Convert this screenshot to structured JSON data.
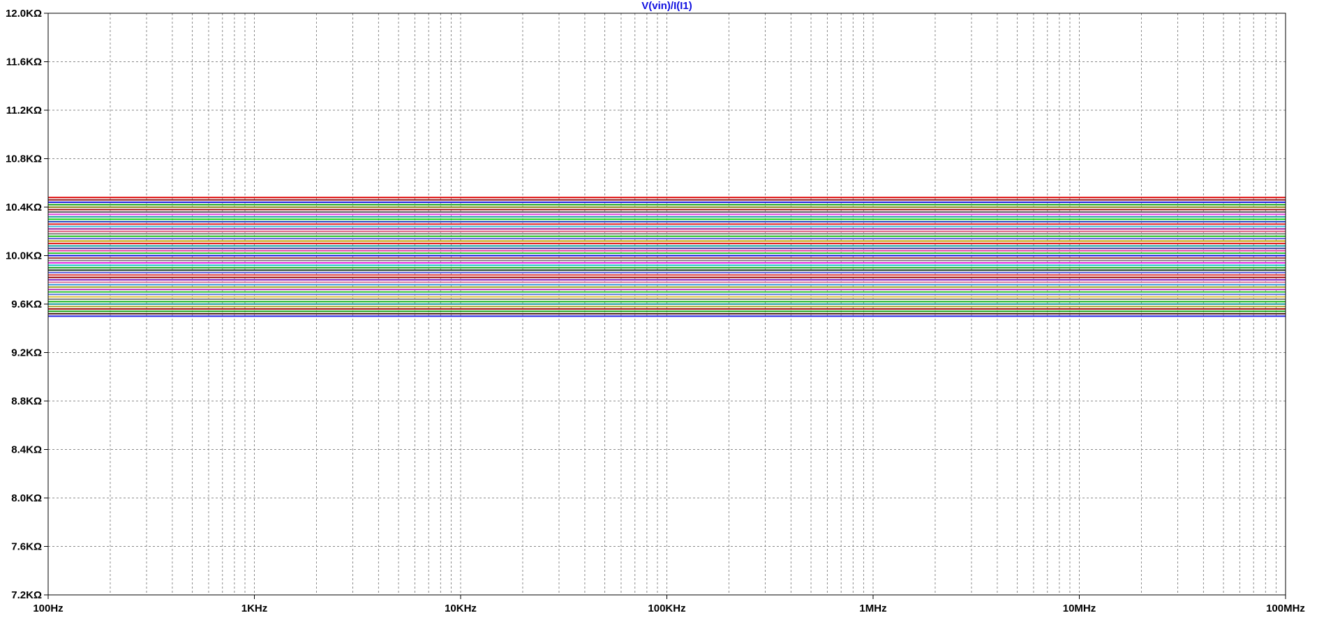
{
  "chart_data": {
    "type": "line",
    "title": "V(vin)/I(I1)",
    "title_color": "#1010e0",
    "xlabel": "",
    "ylabel": "",
    "x_scale": "log",
    "xlim": [
      100,
      100000000
    ],
    "ylim": [
      7200,
      12000
    ],
    "grid": true,
    "x_ticks": [
      {
        "value": 100,
        "label": "100Hz"
      },
      {
        "value": 1000,
        "label": "1KHz"
      },
      {
        "value": 10000,
        "label": "10KHz"
      },
      {
        "value": 100000,
        "label": "100KHz"
      },
      {
        "value": 1000000,
        "label": "1MHz"
      },
      {
        "value": 10000000,
        "label": "10MHz"
      },
      {
        "value": 100000000,
        "label": "100MHz"
      }
    ],
    "y_ticks": [
      {
        "value": 7200,
        "label": "7.2KΩ"
      },
      {
        "value": 7600,
        "label": "7.6KΩ"
      },
      {
        "value": 8000,
        "label": "8.0KΩ"
      },
      {
        "value": 8400,
        "label": "8.4KΩ"
      },
      {
        "value": 8800,
        "label": "8.8KΩ"
      },
      {
        "value": 9200,
        "label": "9.2KΩ"
      },
      {
        "value": 9600,
        "label": "9.6KΩ"
      },
      {
        "value": 10000,
        "label": "10.0KΩ"
      },
      {
        "value": 10400,
        "label": "10.4KΩ"
      },
      {
        "value": 10800,
        "label": "10.8KΩ"
      },
      {
        "value": 11200,
        "label": "11.2KΩ"
      },
      {
        "value": 11600,
        "label": "11.6KΩ"
      },
      {
        "value": 12000,
        "label": "12.0KΩ"
      }
    ],
    "series": [
      {
        "value": 10480,
        "color": "#e01010"
      },
      {
        "value": 10460,
        "color": "#8a1a1a"
      },
      {
        "value": 10440,
        "color": "#2020e0"
      },
      {
        "value": 10420,
        "color": "#10a010"
      },
      {
        "value": 10400,
        "color": "#8a8a20"
      },
      {
        "value": 10380,
        "color": "#a01010"
      },
      {
        "value": 10360,
        "color": "#606060"
      },
      {
        "value": 10340,
        "color": "#e040e0"
      },
      {
        "value": 10320,
        "color": "#20a0a0"
      },
      {
        "value": 10300,
        "color": "#10d010"
      },
      {
        "value": 10280,
        "color": "#2040c0"
      },
      {
        "value": 10260,
        "color": "#e02020"
      },
      {
        "value": 10240,
        "color": "#40c0e0"
      },
      {
        "value": 10220,
        "color": "#a020a0"
      },
      {
        "value": 10200,
        "color": "#e06080"
      },
      {
        "value": 10180,
        "color": "#808080"
      },
      {
        "value": 10160,
        "color": "#20c020"
      },
      {
        "value": 10140,
        "color": "#6060e0"
      },
      {
        "value": 10120,
        "color": "#c0a000"
      },
      {
        "value": 10100,
        "color": "#e01010"
      },
      {
        "value": 10080,
        "color": "#10a0a0"
      },
      {
        "value": 10060,
        "color": "#4040a0"
      },
      {
        "value": 10040,
        "color": "#e040a0"
      },
      {
        "value": 10020,
        "color": "#30c030"
      },
      {
        "value": 10000,
        "color": "#1010e0"
      },
      {
        "value": 9980,
        "color": "#a04040"
      },
      {
        "value": 9960,
        "color": "#808080"
      },
      {
        "value": 9940,
        "color": "#e020e0"
      },
      {
        "value": 9920,
        "color": "#10c0c0"
      },
      {
        "value": 9900,
        "color": "#20a020"
      },
      {
        "value": 9880,
        "color": "#1a3a1a"
      },
      {
        "value": 9860,
        "color": "#6060e0"
      },
      {
        "value": 9840,
        "color": "#e04040"
      },
      {
        "value": 9820,
        "color": "#a01010"
      },
      {
        "value": 9800,
        "color": "#8020c0"
      },
      {
        "value": 9780,
        "color": "#e080a0"
      },
      {
        "value": 9760,
        "color": "#40a0e0"
      },
      {
        "value": 9740,
        "color": "#a0a020"
      },
      {
        "value": 9720,
        "color": "#c040c0"
      },
      {
        "value": 9700,
        "color": "#30c030"
      },
      {
        "value": 9680,
        "color": "#6080e0"
      },
      {
        "value": 9660,
        "color": "#e0c040"
      },
      {
        "value": 9640,
        "color": "#808080"
      },
      {
        "value": 9620,
        "color": "#10b010"
      },
      {
        "value": 9600,
        "color": "#20a0a0"
      },
      {
        "value": 9580,
        "color": "#a0a020"
      },
      {
        "value": 9560,
        "color": "#a01010"
      },
      {
        "value": 9540,
        "color": "#10a010"
      },
      {
        "value": 9520,
        "color": "#4a1a1a"
      },
      {
        "value": 9500,
        "color": "#2020e0"
      }
    ]
  }
}
